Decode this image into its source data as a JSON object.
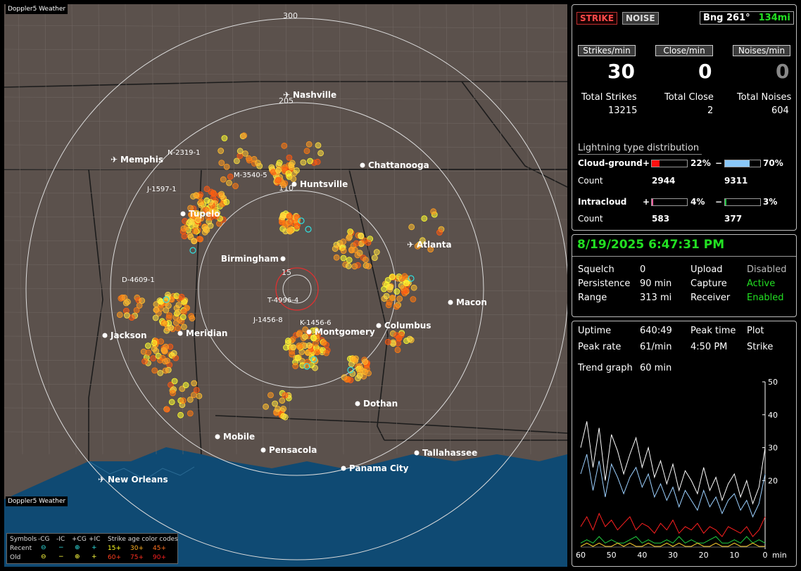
{
  "map": {
    "title": "Doppler5 Weather",
    "footer": "Doppler5 Weather",
    "ring_labels": [
      "300",
      "205",
      "110",
      "15"
    ],
    "cities": [
      {
        "name": "Nashville",
        "icon": "airport"
      },
      {
        "name": "Memphis",
        "icon": "airport"
      },
      {
        "name": "Chattanooga",
        "icon": "dot"
      },
      {
        "name": "Huntsville",
        "icon": "dot"
      },
      {
        "name": "Tupelo",
        "icon": "dot"
      },
      {
        "name": "Atlanta",
        "icon": "airport"
      },
      {
        "name": "Birmingham",
        "icon": "dot"
      },
      {
        "name": "Macon",
        "icon": "dot"
      },
      {
        "name": "Columbus",
        "icon": "dot"
      },
      {
        "name": "Montgomery",
        "icon": "dot"
      },
      {
        "name": "Jackson",
        "icon": "dot"
      },
      {
        "name": "Meridian",
        "icon": "dot"
      },
      {
        "name": "Dothan",
        "icon": "dot"
      },
      {
        "name": "Mobile",
        "icon": "dot"
      },
      {
        "name": "Pensacola",
        "icon": "dot"
      },
      {
        "name": "Tallahassee",
        "icon": "dot"
      },
      {
        "name": "Panama City",
        "icon": "dot"
      },
      {
        "name": "New Orleans",
        "icon": "airport"
      }
    ],
    "sensors": [
      "N-2319-1",
      "M-3540-5",
      "J-1597-1",
      "D-4609-1",
      "T-4996-4",
      "J-1456-8",
      "K-1456-6"
    ],
    "legend": {
      "title_symbols": "Symbols",
      "col_neg_cg": "-CG",
      "col_neg_ic": "-IC",
      "col_pos_cg": "+CG",
      "col_pos_ic": "+IC",
      "title_age": "Strike age color codes",
      "row_recent": "Recent",
      "row_old": "Old",
      "ages_recent": [
        "15+",
        "30+",
        "45+"
      ],
      "ages_old": [
        "60+",
        "75+",
        "90+"
      ],
      "age_colors": [
        "#ffff20",
        "#ffb020",
        "#ff7020",
        "#ff4020",
        "#ff3020",
        "#ff2020"
      ]
    }
  },
  "status": {
    "strike_button": "STRIKE",
    "noise_button": "NOISE",
    "bearing_label": "Bng 261°",
    "bearing_distance": "134mi"
  },
  "rates": {
    "strikes_header": "Strikes/min",
    "close_header": "Close/min",
    "noises_header": "Noises/min",
    "strikes_value": "30",
    "close_value": "0",
    "noises_value": "0",
    "total_strikes_label": "Total Strikes",
    "total_close_label": "Total Close",
    "total_noises_label": "Total Noises",
    "total_strikes": "13215",
    "total_close": "2",
    "total_noises": "604"
  },
  "distribution": {
    "title": "Lightning type distribution",
    "cg_label": "Cloud-ground",
    "ic_label": "Intracloud",
    "plus": "+",
    "minus": "−",
    "count_label": "Count",
    "cg_pos_pct": "22%",
    "cg_neg_pct": "70%",
    "cg_pos_count": "2944",
    "cg_neg_count": "9311",
    "ic_pos_pct": "4%",
    "ic_neg_pct": "3%",
    "ic_pos_count": "583",
    "ic_neg_count": "377",
    "cg_pos_frac": 0.22,
    "cg_neg_frac": 0.7,
    "ic_pos_frac": 0.04,
    "ic_neg_frac": 0.03,
    "colors": {
      "cg_pos": "#ff1010",
      "cg_neg": "#8ac8f8",
      "ic_pos": "#ff60a0",
      "ic_neg": "#20c040"
    }
  },
  "settings": {
    "datetime": "8/19/2025 6:47:31 PM",
    "squelch_label": "Squelch",
    "squelch_value": "0",
    "persistence_label": "Persistence",
    "persistence_value": "90 min",
    "range_label": "Range",
    "range_value": "313 mi",
    "upload_label": "Upload",
    "upload_value": "Disabled",
    "capture_label": "Capture",
    "capture_value": "Active",
    "receiver_label": "Receiver",
    "receiver_value": "Enabled"
  },
  "stats": {
    "uptime_label": "Uptime",
    "uptime_value": "640:49",
    "peak_time_label": "Peak time",
    "peak_time_value": "4:50 PM",
    "plot_label": "Plot",
    "plot_value": "Strike",
    "peak_rate_label": "Peak rate",
    "peak_rate_value": "61/min",
    "trend_label": "Trend graph",
    "trend_value": "60 min"
  },
  "chart_data": {
    "type": "line",
    "title": "",
    "xlabel": "min",
    "ylabel": "",
    "x_ticks": [
      "60",
      "50",
      "40",
      "30",
      "20",
      "10",
      "0"
    ],
    "y_ticks": [
      "50",
      "40",
      "30",
      "20"
    ],
    "ylim": [
      0,
      50
    ],
    "x": [
      60,
      58,
      56,
      54,
      52,
      50,
      48,
      46,
      44,
      42,
      40,
      38,
      36,
      34,
      32,
      30,
      28,
      26,
      24,
      22,
      20,
      18,
      16,
      14,
      12,
      10,
      8,
      6,
      4,
      2,
      0
    ],
    "series": [
      {
        "color": "#ffffff",
        "values": [
          30,
          38,
          24,
          36,
          20,
          34,
          29,
          22,
          28,
          33,
          24,
          30,
          21,
          26,
          19,
          25,
          17,
          23,
          20,
          16,
          24,
          17,
          21,
          14,
          19,
          22,
          15,
          20,
          13,
          18,
          30
        ]
      },
      {
        "color": "#9cd0ff",
        "values": [
          22,
          28,
          17,
          26,
          15,
          25,
          21,
          16,
          21,
          24,
          18,
          22,
          15,
          19,
          14,
          18,
          12,
          17,
          14,
          11,
          17,
          12,
          15,
          10,
          14,
          16,
          11,
          14,
          9,
          13,
          22
        ]
      },
      {
        "color": "#ff2020",
        "values": [
          6,
          9,
          5,
          10,
          6,
          8,
          5,
          7,
          9,
          5,
          7,
          6,
          4,
          7,
          5,
          8,
          4,
          6,
          5,
          7,
          4,
          6,
          5,
          3,
          6,
          5,
          4,
          6,
          3,
          5,
          9
        ]
      },
      {
        "color": "#20d040",
        "values": [
          1,
          2,
          1,
          3,
          1,
          2,
          1,
          1,
          2,
          3,
          1,
          2,
          1,
          1,
          2,
          1,
          3,
          1,
          2,
          1,
          1,
          2,
          3,
          1,
          1,
          2,
          1,
          3,
          1,
          2,
          1
        ]
      },
      {
        "color": "#ffd030",
        "values": [
          0,
          1,
          0,
          1,
          0,
          0,
          1,
          0,
          1,
          0,
          0,
          1,
          0,
          0,
          1,
          0,
          1,
          0,
          0,
          1,
          0,
          0,
          1,
          0,
          0,
          1,
          0,
          0,
          1,
          0,
          0
        ]
      }
    ]
  }
}
